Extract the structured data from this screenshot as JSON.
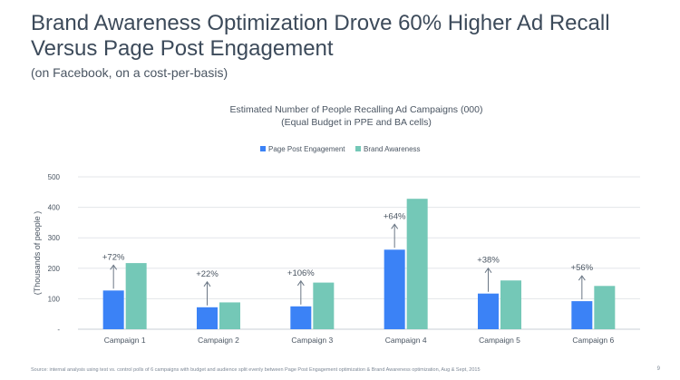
{
  "slide": {
    "headline": "Brand Awareness Optimization Drove 60% Higher Ad Recall Versus Page Post Engagement",
    "subhead": "(on Facebook, on a cost-per-basis)",
    "source": "Source: internal analysis using test vs. control polls of 6 campaigns with budget and audience split evenly between Page Post Engagement optimization & Brand Awareness optimization, Aug & Sept, 2015",
    "page_number": "9"
  },
  "chart_data": {
    "type": "bar",
    "title": "Estimated Number of People Recalling Ad Campaigns (000)",
    "subtitle": "(Equal Budget in PPE and BA cells)",
    "ylabel": "(Thousands of people )",
    "ylim": [
      0,
      500
    ],
    "yticks": [
      0,
      100,
      200,
      300,
      400,
      500
    ],
    "ytick_labels": [
      "-",
      "100",
      "200",
      "300",
      "400",
      "500"
    ],
    "grid": true,
    "legend": "top-center",
    "categories": [
      "Campaign 1",
      "Campaign 2",
      "Campaign 3",
      "Campaign 4",
      "Campaign 5",
      "Campaign 6"
    ],
    "series": [
      {
        "name": "Page Post Engagement",
        "color": "#3b82f6",
        "values": [
          127,
          72,
          75,
          261,
          117,
          92
        ]
      },
      {
        "name": "Brand Awareness",
        "color": "#74c8b7",
        "values": [
          217,
          88,
          153,
          428,
          160,
          142
        ]
      }
    ],
    "annotations": [
      "+72%",
      "+22%",
      "+106%",
      "+64%",
      "+38%",
      "+56%"
    ]
  }
}
